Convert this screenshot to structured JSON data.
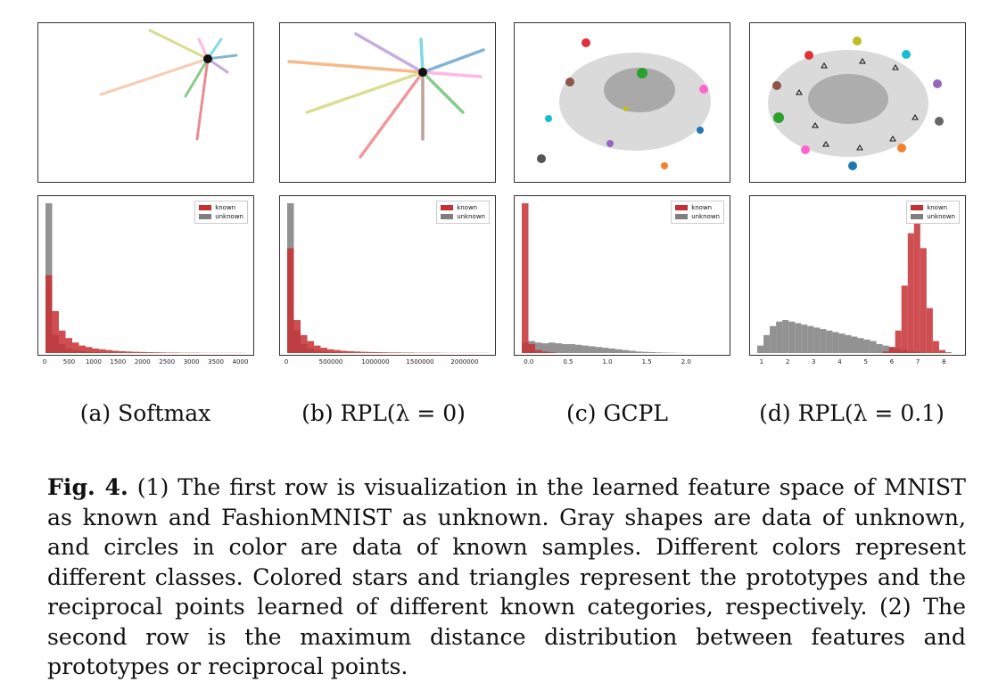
{
  "subcaptions": [
    "(a) Softmax",
    "(b) RPL(λ = 0)",
    "(c) GCPL",
    "(d) RPL(λ = 0.1)"
  ],
  "caption": {
    "label": "Fig. 4.",
    "text": " (1) The first row is visualization in the learned feature space of MNIST as known and FashionMNIST as unknown. Gray shapes are data of unknown, and circles in color are data of known samples. Different colors represent different classes. Colored stars and triangles represent the prototypes and the reciprocal points learned of different known categories, respectively. (2) The second row is the maximum distance distribution between features and prototypes or reciprocal points."
  },
  "legend": {
    "known": "known",
    "unknown": "unknown",
    "known_color": "#c62f33",
    "unknown_color": "#7f7f7f"
  },
  "chart_data": [
    {
      "type": "histogram",
      "title": "Softmax",
      "xticks": [
        "0",
        "500",
        "1000",
        "1500",
        "2000",
        "2500",
        "3000",
        "3500",
        "4000"
      ],
      "xlim": [
        0,
        4100
      ],
      "known": [
        0.52,
        0.28,
        0.15,
        0.1,
        0.07,
        0.05,
        0.04,
        0.03,
        0.025,
        0.02,
        0.015,
        0.012,
        0.01,
        0.008,
        0.007,
        0.006,
        0.005,
        0.004,
        0.003,
        0.003,
        0.002,
        0.002,
        0.002,
        0.001,
        0.001,
        0.001,
        0.001,
        0.001,
        0.001,
        0.001
      ],
      "unknown": [
        1.0,
        0.12,
        0.06,
        0.03,
        0.02,
        0.012,
        0.008,
        0.006,
        0.004,
        0.003,
        0.002,
        0.002,
        0.001,
        0.001,
        0.001,
        0,
        0,
        0,
        0,
        0,
        0,
        0,
        0,
        0,
        0,
        0,
        0,
        0,
        0,
        0
      ]
    },
    {
      "type": "histogram",
      "title": "RPL(λ = 0)",
      "xticks": [
        "0",
        "500000",
        "1000000",
        "1500000",
        "2000000"
      ],
      "xlim": [
        0,
        2250000
      ],
      "known": [
        0.7,
        0.22,
        0.12,
        0.08,
        0.05,
        0.035,
        0.025,
        0.02,
        0.015,
        0.012,
        0.01,
        0.008,
        0.007,
        0.006,
        0.005,
        0.004,
        0.004,
        0.003,
        0.003,
        0.002,
        0.002,
        0.002,
        0.002,
        0.001,
        0.001,
        0.001,
        0.001,
        0.001,
        0.001,
        0.001
      ],
      "unknown": [
        1.0,
        0.15,
        0.06,
        0.03,
        0.015,
        0.01,
        0.006,
        0.004,
        0.003,
        0.002,
        0.001,
        0.001,
        0,
        0,
        0,
        0,
        0,
        0,
        0,
        0,
        0,
        0,
        0,
        0,
        0,
        0,
        0,
        0,
        0,
        0
      ]
    },
    {
      "type": "histogram",
      "title": "GCPL",
      "xticks": [
        "0.0",
        "0.5",
        "1.0",
        "1.5",
        "2.0"
      ],
      "xlim": [
        -0.1,
        2.45
      ],
      "known": [
        1.0,
        0.06,
        0.02,
        0.01,
        0.005,
        0,
        0,
        0,
        0,
        0,
        0,
        0,
        0,
        0,
        0,
        0,
        0,
        0,
        0,
        0,
        0,
        0,
        0,
        0,
        0,
        0,
        0,
        0,
        0,
        0
      ],
      "unknown": [
        0.07,
        0.08,
        0.07,
        0.065,
        0.07,
        0.065,
        0.06,
        0.06,
        0.055,
        0.05,
        0.045,
        0.04,
        0.035,
        0.03,
        0.025,
        0.02,
        0.015,
        0.01,
        0.008,
        0.006,
        0.004,
        0.003,
        0.002,
        0.001,
        0,
        0,
        0,
        0,
        0,
        0
      ]
    },
    {
      "type": "histogram",
      "title": "RPL(λ = 0.1)",
      "xticks": [
        "1",
        "2",
        "3",
        "4",
        "5",
        "6",
        "7",
        "8"
      ],
      "xlim": [
        0.8,
        8.5
      ],
      "known": [
        0,
        0,
        0,
        0,
        0,
        0,
        0,
        0,
        0,
        0,
        0,
        0,
        0,
        0,
        0,
        0,
        0,
        0,
        0,
        0,
        0.01,
        0.04,
        0.15,
        0.45,
        0.8,
        1.0,
        0.7,
        0.3,
        0.08,
        0.02,
        0.005,
        0
      ],
      "unknown": [
        0.05,
        0.12,
        0.18,
        0.21,
        0.22,
        0.21,
        0.2,
        0.19,
        0.18,
        0.17,
        0.16,
        0.15,
        0.14,
        0.13,
        0.12,
        0.11,
        0.1,
        0.09,
        0.08,
        0.06,
        0.05,
        0.04,
        0.03,
        0.02,
        0.01,
        0.005,
        0.002,
        0,
        0,
        0,
        0,
        0
      ]
    }
  ]
}
